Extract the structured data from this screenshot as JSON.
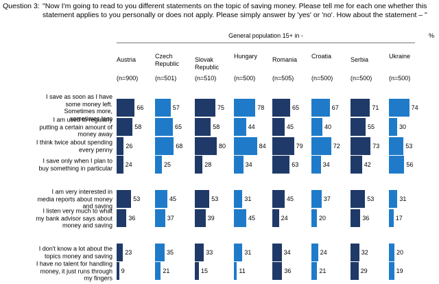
{
  "chart_data": {
    "type": "bar",
    "question_label": "Question 3:",
    "title": "\"Now I'm going to read to you different statements on the topic of saving money. Please tell me for each one whether this statement applies to you personally or does not apply. Please simply answer by 'yes' or 'no'. How about the statement – \"",
    "subtitle": "General population 15+ in -",
    "unit": "%",
    "categories": [
      "I save as soon as I have some money left. Sometimes more, sometimes less",
      "I am used to regularly putting a certain amount of money away",
      "I think twice about spending every penny",
      "I save only when I plan to buy something in particular",
      "I am very interested in media reports about money and saving",
      "I listen very much to what my bank advisor says about money and saving",
      "I don't know a lot about the topics money and saving",
      "I have no talent for handling money, it just runs through my fingers"
    ],
    "series": [
      {
        "name": "Austria",
        "sample": "(n=900)",
        "color": "#1f3a68",
        "values": [
          66,
          58,
          26,
          24,
          53,
          36,
          23,
          9
        ]
      },
      {
        "name": "Czech Republic",
        "sample": "(n=501)",
        "color": "#1f7bc9",
        "values": [
          57,
          65,
          68,
          25,
          45,
          37,
          35,
          21
        ]
      },
      {
        "name": "Slovak Republic",
        "sample": "(n=510)",
        "color": "#1f3a68",
        "values": [
          75,
          58,
          80,
          28,
          53,
          39,
          33,
          15
        ]
      },
      {
        "name": "Hungary",
        "sample": "(n=500)",
        "color": "#1f7bc9",
        "values": [
          78,
          44,
          84,
          34,
          31,
          45,
          31,
          11
        ]
      },
      {
        "name": "Romania",
        "sample": "(n=505)",
        "color": "#1f3a68",
        "values": [
          65,
          45,
          79,
          63,
          45,
          24,
          34,
          36
        ]
      },
      {
        "name": "Croatia",
        "sample": "(n=500)",
        "color": "#1f7bc9",
        "values": [
          67,
          40,
          72,
          34,
          37,
          20,
          24,
          21
        ]
      },
      {
        "name": "Serbia",
        "sample": "(n=500)",
        "color": "#1f3a68",
        "values": [
          71,
          55,
          73,
          42,
          53,
          36,
          32,
          29
        ]
      },
      {
        "name": "Ukraine",
        "sample": "(n=500)",
        "color": "#1f7bc9",
        "values": [
          74,
          30,
          53,
          56,
          31,
          17,
          20,
          19
        ]
      }
    ]
  }
}
